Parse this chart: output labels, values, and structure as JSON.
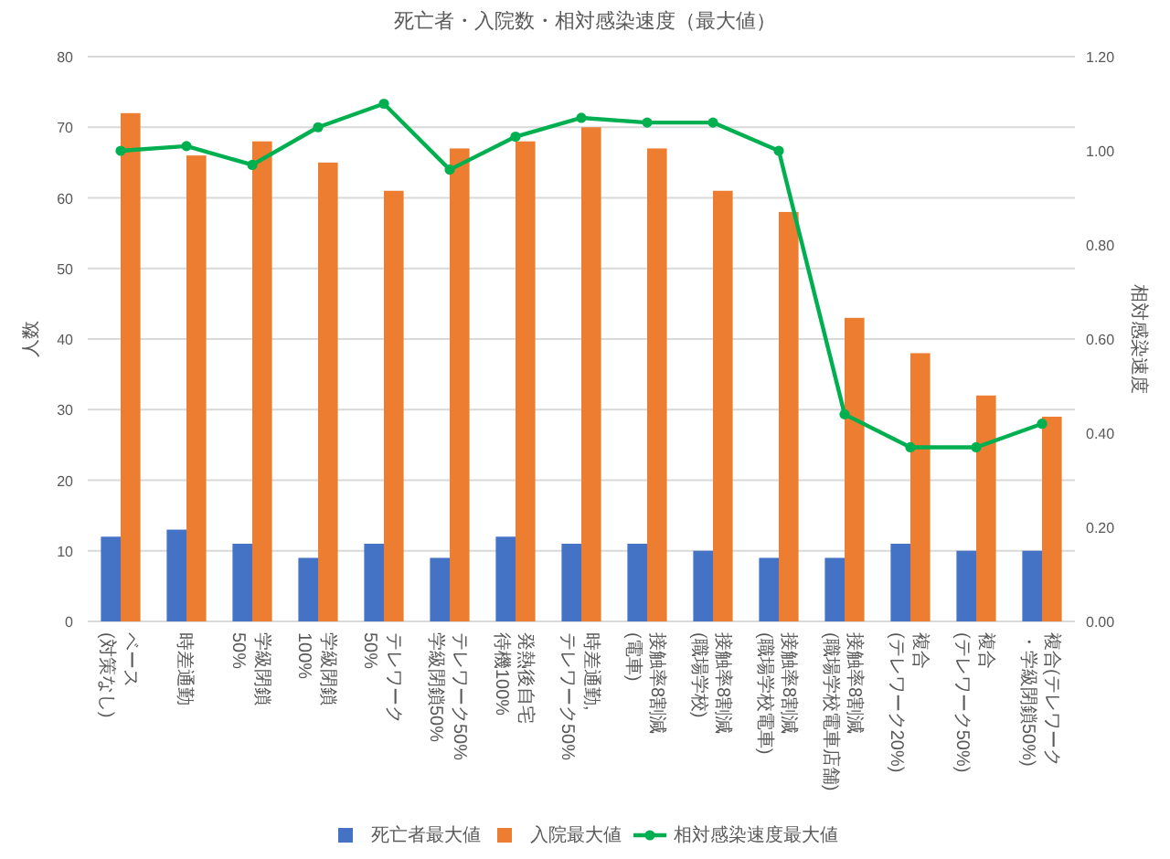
{
  "chart_data": {
    "type": "bar",
    "title": "死亡者・入院数・相対感染速度（最大値）",
    "ylabel": "人数",
    "y2label": "相対感染速度",
    "categories": [
      "ベース\n(対策なし)",
      "時差通勤",
      "学級閉鎖\n50%",
      "学級閉鎖\n100%",
      "テレワーク\n50%",
      "テレワーク50%\n学級閉鎖50%",
      "発熱後自宅待機100%",
      "時差通勤,\nテレワーク50%",
      "接触率8割減\n(電車)",
      "接触率8割減\n(職場学校)",
      "接触率8割減\n(職場学校電車)",
      "接触率8割減\n(職場学校電車店舗)",
      "複合\n(テレワーク20%)",
      "複合\n(テレワーク50%)",
      "複合(テレワーク・学級閉鎖50%)"
    ],
    "series": [
      {
        "name": "死亡者最大値",
        "color": "#4472c4",
        "values": [
          12,
          13,
          11,
          9,
          11,
          9,
          12,
          11,
          11,
          10,
          9,
          9,
          11,
          10,
          10
        ]
      },
      {
        "name": "入院最大値",
        "color": "#ed7d31",
        "values": [
          72,
          66,
          68,
          65,
          61,
          67,
          68,
          70,
          67,
          61,
          58,
          43,
          38,
          32,
          29
        ]
      },
      {
        "name": "相対感染速度最大値",
        "type": "line",
        "axis": "y2",
        "color": "#00b050",
        "marker": "circle",
        "values": [
          1.0,
          1.01,
          0.97,
          1.05,
          1.1,
          0.96,
          1.03,
          1.07,
          1.06,
          1.06,
          1.0,
          0.44,
          0.37,
          0.37,
          0.42
        ]
      }
    ],
    "ylim": [
      0,
      80
    ],
    "yticks": [
      0,
      10,
      20,
      30,
      40,
      50,
      60,
      70,
      80
    ],
    "y2lim": [
      0,
      1.2
    ],
    "y2ticks": [
      {
        "value": 0,
        "label": "0.00"
      },
      {
        "value": 0.2,
        "label": "0.20"
      },
      {
        "value": 0.4,
        "label": "0.40"
      },
      {
        "value": 0.6,
        "label": "0.60"
      },
      {
        "value": 0.8,
        "label": "0.80"
      },
      {
        "value": 1.0,
        "label": "1.00"
      },
      {
        "value": 1.2,
        "label": "1.20"
      }
    ],
    "grid": "y",
    "legend": "bottom"
  }
}
